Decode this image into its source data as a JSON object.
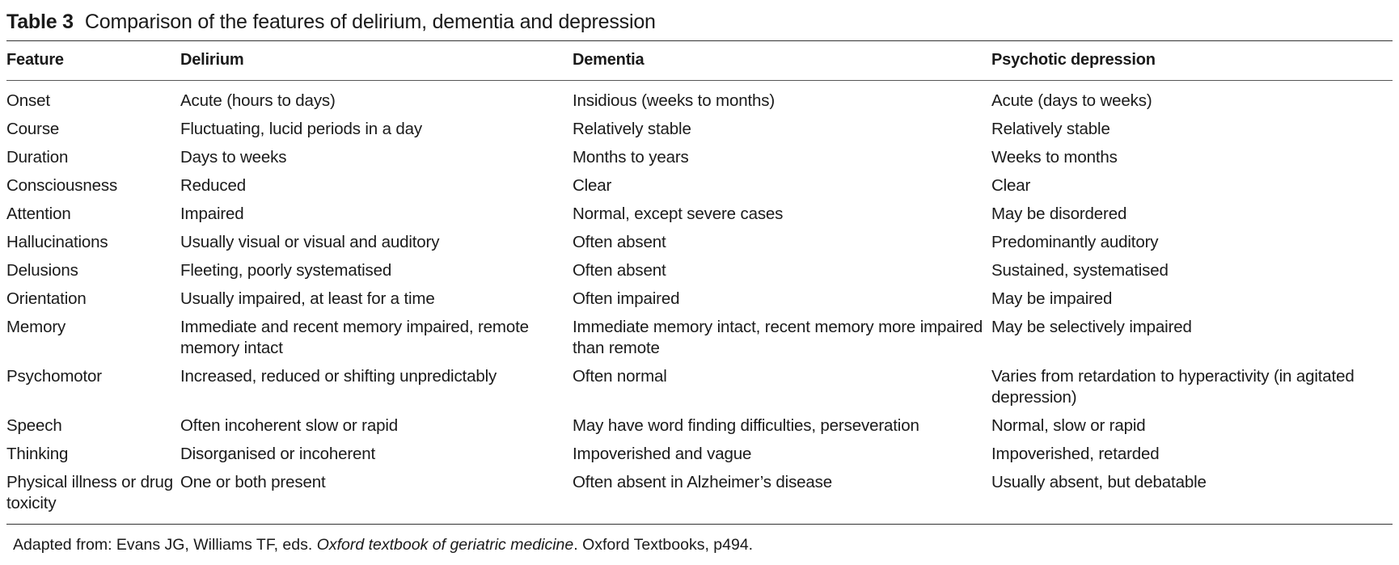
{
  "caption": {
    "number": "Table 3",
    "title": "Comparison of the features of delirium, dementia and depression"
  },
  "table": {
    "headers": [
      "Feature",
      "Delirium",
      "Dementia",
      "Psychotic depression"
    ],
    "rows": [
      [
        "Onset",
        "Acute (hours to days)",
        "Insidious (weeks to months)",
        "Acute (days to weeks)"
      ],
      [
        "Course",
        "Fluctuating, lucid periods in a day",
        "Relatively stable",
        "Relatively stable"
      ],
      [
        "Duration",
        "Days to weeks",
        "Months to years",
        "Weeks to months"
      ],
      [
        "Consciousness",
        "Reduced",
        "Clear",
        "Clear"
      ],
      [
        "Attention",
        "Impaired",
        "Normal, except severe cases",
        "May be disordered"
      ],
      [
        "Hallucinations",
        "Usually visual or visual and auditory",
        "Often absent",
        "Predominantly auditory"
      ],
      [
        "Delusions",
        "Fleeting, poorly systematised",
        "Often absent",
        "Sustained, systematised"
      ],
      [
        "Orientation",
        "Usually impaired, at least for a time",
        "Often impaired",
        "May be impaired"
      ],
      [
        "Memory",
        "Immediate and recent memory impaired, remote memory intact",
        "Immediate memory intact, recent memory more impaired than remote",
        "May be selectively impaired"
      ],
      [
        "Psychomotor",
        "Increased, reduced or shifting unpredictably",
        "Often normal",
        "Varies from retardation to hyperactivity (in agitated depression)"
      ],
      [
        "Speech",
        "Often incoherent slow or rapid",
        "May have word finding difficulties, perseveration",
        "Normal, slow or rapid"
      ],
      [
        "Thinking",
        "Disorganised or incoherent",
        "Impoverished and vague",
        "Impoverished, retarded"
      ],
      [
        "Physical illness or drug toxicity",
        "One or both present",
        "Often absent in Alzheimer’s disease",
        "Usually absent, but debatable"
      ]
    ]
  },
  "footnote": {
    "prefix": "Adapted from: Evans JG, Williams TF, eds. ",
    "book_title": "Oxford textbook of geriatric medicine",
    "suffix": ". Oxford Textbooks, p494."
  }
}
